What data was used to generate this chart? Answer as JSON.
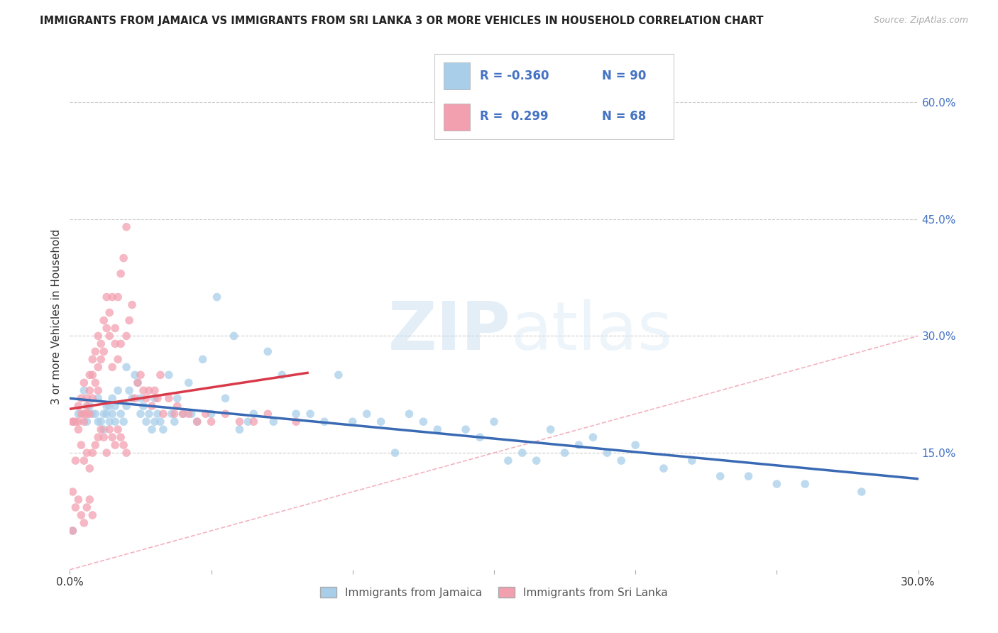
{
  "title": "IMMIGRANTS FROM JAMAICA VS IMMIGRANTS FROM SRI LANKA 3 OR MORE VEHICLES IN HOUSEHOLD CORRELATION CHART",
  "source": "Source: ZipAtlas.com",
  "ylabel": "3 or more Vehicles in Household",
  "x_min": 0.0,
  "x_max": 0.3,
  "y_min": 0.0,
  "y_max": 0.65,
  "y_ticks_right": [
    0.15,
    0.3,
    0.45,
    0.6
  ],
  "y_tick_labels_right": [
    "15.0%",
    "30.0%",
    "45.0%",
    "60.0%"
  ],
  "legend_R_jamaica": "-0.360",
  "legend_N_jamaica": "90",
  "legend_R_srilanka": "0.299",
  "legend_N_srilanka": "68",
  "color_jamaica": "#A8CEEA",
  "color_srilanka": "#F2A0B0",
  "trendline_jamaica_color": "#3A6AB4",
  "trendline_srilanka_color": "#D93A4A",
  "diagonal_color": "#F0A0B0",
  "watermark_zip": "ZIP",
  "watermark_atlas": "atlas",
  "background_color": "#FFFFFF",
  "grid_color": "#CCCCCC",
  "jamaica_x": [
    0.001,
    0.003,
    0.005,
    0.006,
    0.007,
    0.008,
    0.009,
    0.01,
    0.01,
    0.011,
    0.012,
    0.012,
    0.013,
    0.013,
    0.014,
    0.014,
    0.015,
    0.015,
    0.016,
    0.016,
    0.017,
    0.018,
    0.019,
    0.02,
    0.02,
    0.021,
    0.022,
    0.023,
    0.024,
    0.025,
    0.025,
    0.026,
    0.027,
    0.028,
    0.029,
    0.03,
    0.03,
    0.031,
    0.032,
    0.033,
    0.035,
    0.036,
    0.037,
    0.038,
    0.04,
    0.042,
    0.043,
    0.045,
    0.047,
    0.05,
    0.052,
    0.055,
    0.058,
    0.06,
    0.063,
    0.065,
    0.07,
    0.072,
    0.075,
    0.08,
    0.085,
    0.09,
    0.095,
    0.1,
    0.105,
    0.11,
    0.115,
    0.12,
    0.125,
    0.13,
    0.14,
    0.145,
    0.15,
    0.155,
    0.16,
    0.165,
    0.17,
    0.175,
    0.18,
    0.185,
    0.19,
    0.195,
    0.2,
    0.21,
    0.22,
    0.23,
    0.24,
    0.25,
    0.26,
    0.28
  ],
  "jamaica_y": [
    0.05,
    0.2,
    0.23,
    0.19,
    0.21,
    0.2,
    0.2,
    0.19,
    0.22,
    0.19,
    0.2,
    0.18,
    0.21,
    0.2,
    0.19,
    0.21,
    0.2,
    0.22,
    0.19,
    0.21,
    0.23,
    0.2,
    0.19,
    0.26,
    0.21,
    0.23,
    0.22,
    0.25,
    0.24,
    0.22,
    0.2,
    0.21,
    0.19,
    0.2,
    0.18,
    0.19,
    0.22,
    0.2,
    0.19,
    0.18,
    0.25,
    0.2,
    0.19,
    0.22,
    0.2,
    0.24,
    0.2,
    0.19,
    0.27,
    0.2,
    0.35,
    0.22,
    0.3,
    0.18,
    0.19,
    0.2,
    0.28,
    0.19,
    0.25,
    0.2,
    0.2,
    0.19,
    0.25,
    0.19,
    0.2,
    0.19,
    0.15,
    0.2,
    0.19,
    0.18,
    0.18,
    0.17,
    0.19,
    0.14,
    0.15,
    0.14,
    0.18,
    0.15,
    0.16,
    0.17,
    0.15,
    0.14,
    0.16,
    0.13,
    0.14,
    0.12,
    0.12,
    0.11,
    0.11,
    0.1
  ],
  "srilanka_x": [
    0.001,
    0.002,
    0.003,
    0.003,
    0.004,
    0.004,
    0.005,
    0.005,
    0.005,
    0.006,
    0.006,
    0.006,
    0.007,
    0.007,
    0.007,
    0.008,
    0.008,
    0.008,
    0.009,
    0.009,
    0.01,
    0.01,
    0.01,
    0.011,
    0.011,
    0.012,
    0.012,
    0.013,
    0.013,
    0.014,
    0.014,
    0.015,
    0.015,
    0.016,
    0.016,
    0.017,
    0.017,
    0.018,
    0.018,
    0.019,
    0.02,
    0.02,
    0.021,
    0.022,
    0.023,
    0.024,
    0.025,
    0.026,
    0.027,
    0.028,
    0.029,
    0.03,
    0.031,
    0.032,
    0.033,
    0.035,
    0.037,
    0.038,
    0.04,
    0.042,
    0.045,
    0.048,
    0.05,
    0.055,
    0.06,
    0.065,
    0.07,
    0.08
  ],
  "srilanka_y": [
    0.19,
    0.19,
    0.21,
    0.19,
    0.22,
    0.2,
    0.2,
    0.24,
    0.19,
    0.21,
    0.22,
    0.2,
    0.2,
    0.23,
    0.25,
    0.22,
    0.27,
    0.25,
    0.24,
    0.28,
    0.26,
    0.23,
    0.3,
    0.27,
    0.29,
    0.32,
    0.28,
    0.31,
    0.35,
    0.33,
    0.3,
    0.35,
    0.26,
    0.29,
    0.31,
    0.35,
    0.27,
    0.38,
    0.29,
    0.4,
    0.44,
    0.3,
    0.32,
    0.34,
    0.22,
    0.24,
    0.25,
    0.23,
    0.22,
    0.23,
    0.21,
    0.23,
    0.22,
    0.25,
    0.2,
    0.22,
    0.2,
    0.21,
    0.2,
    0.2,
    0.19,
    0.2,
    0.19,
    0.2,
    0.19,
    0.19,
    0.2,
    0.19
  ],
  "srilanka_x_extra": [
    0.001,
    0.001,
    0.002,
    0.003,
    0.004,
    0.005,
    0.006,
    0.007,
    0.008,
    0.009,
    0.01,
    0.011,
    0.012,
    0.013,
    0.014,
    0.015,
    0.016,
    0.017,
    0.018,
    0.019,
    0.02,
    0.001,
    0.002,
    0.003,
    0.004,
    0.005,
    0.006,
    0.007,
    0.008
  ],
  "srilanka_y_extra": [
    0.1,
    0.19,
    0.14,
    0.18,
    0.16,
    0.14,
    0.15,
    0.13,
    0.15,
    0.16,
    0.17,
    0.18,
    0.17,
    0.15,
    0.18,
    0.17,
    0.16,
    0.18,
    0.17,
    0.16,
    0.15,
    0.05,
    0.08,
    0.09,
    0.07,
    0.06,
    0.08,
    0.09,
    0.07
  ]
}
